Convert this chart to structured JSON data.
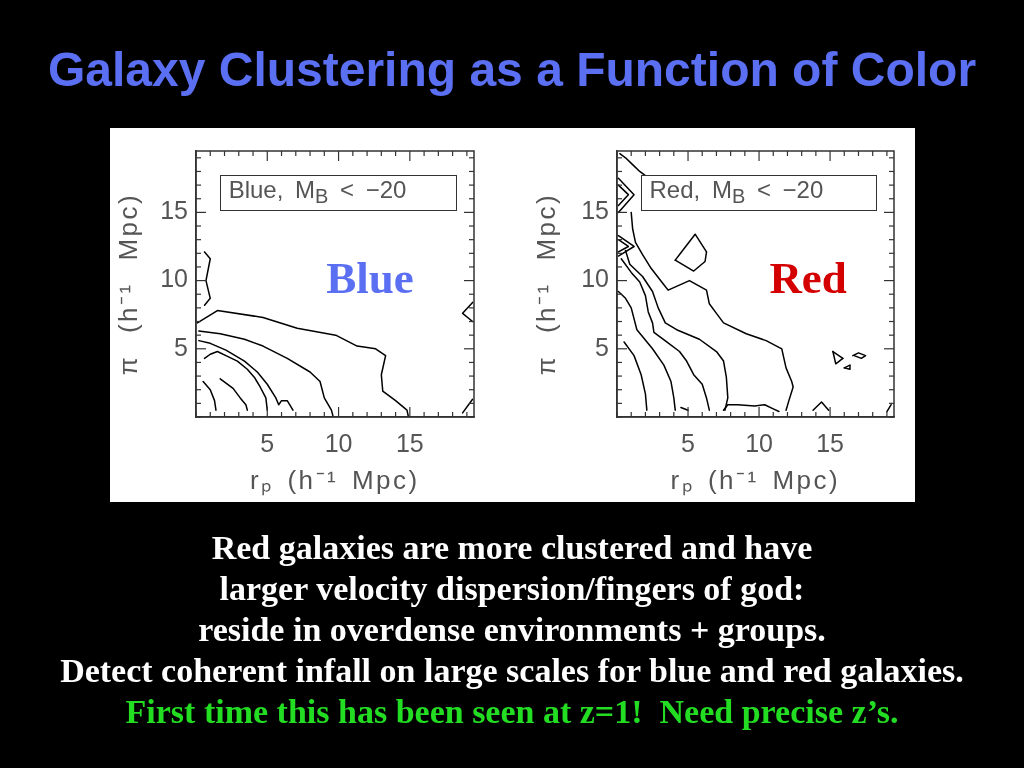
{
  "chart_data": [
    {
      "type": "line",
      "title": "Galaxy Clustering as a Function of Color",
      "xlabel": "rₚ (h⁻¹ Mpc)",
      "ylabel": "π (h⁻¹ Mpc)",
      "annotations": [
        "Blue, M$_{B}$ < −20",
        "Blue"
      ],
      "xlim": [
        0,
        19.5
      ],
      "ylim": [
        0,
        19.5
      ],
      "xticks": [
        {
          "value": 0,
          "label": null
        },
        {
          "value": 1,
          "label": null
        },
        {
          "value": 2,
          "label": null
        },
        {
          "value": 3,
          "label": null
        },
        {
          "value": 4,
          "label": null
        },
        5,
        {
          "value": 6,
          "label": null
        },
        {
          "value": 7,
          "label": null
        },
        {
          "value": 8,
          "label": null
        },
        {
          "value": 9,
          "label": null
        },
        10,
        {
          "value": 11,
          "label": null
        },
        {
          "value": 12,
          "label": null
        },
        {
          "value": 13,
          "label": null
        },
        {
          "value": 14,
          "label": null
        },
        15,
        {
          "value": 16,
          "label": null
        },
        {
          "value": 17,
          "label": null
        },
        {
          "value": 18,
          "label": null
        },
        {
          "value": 19,
          "label": null
        }
      ],
      "yticks": [
        {
          "value": 0,
          "label": null
        },
        {
          "value": 1,
          "label": null
        },
        {
          "value": 2,
          "label": null
        },
        {
          "value": 3,
          "label": null
        },
        {
          "value": 4,
          "label": null
        },
        5,
        {
          "value": 6,
          "label": null
        },
        {
          "value": 7,
          "label": null
        },
        {
          "value": 8,
          "label": null
        },
        {
          "value": 9,
          "label": null
        },
        10,
        {
          "value": 11,
          "label": null
        },
        {
          "value": 12,
          "label": null
        },
        {
          "value": 13,
          "label": null
        },
        {
          "value": 14,
          "label": null
        },
        15,
        {
          "value": 16,
          "label": null
        },
        {
          "value": 17,
          "label": null
        },
        {
          "value": 18,
          "label": null
        },
        {
          "value": 19,
          "label": null
        }
      ],
      "series": [
        {
          "color": "#000000",
          "x": [
            0.1,
            1.5,
            4.7,
            7.1,
            9.8,
            11.3,
            12.6,
            13.3,
            13.0,
            13.1,
            14.0,
            14.8,
            14.9
          ],
          "values": [
            6.9,
            7.8,
            7.3,
            6.5,
            6.0,
            5.2,
            5.0,
            4.5,
            3.1,
            1.9,
            1.2,
            0.5,
            0
          ]
        },
        {
          "color": "#000000",
          "x": [
            0.2,
            1.7,
            3.4,
            4.7,
            6.4,
            8.0,
            8.7,
            9.0,
            9.5,
            9.6
          ],
          "values": [
            6.3,
            6.1,
            5.7,
            5.2,
            4.3,
            3.3,
            2.6,
            1.4,
            0.5,
            0.1
          ]
        },
        {
          "color": "#000000",
          "x": [
            0.2,
            1.0,
            2.1,
            3.4,
            4.3,
            5.0,
            5.6,
            5.8,
            6.0,
            6.4,
            6.8
          ],
          "values": [
            5.6,
            5.4,
            4.9,
            4.1,
            3.3,
            2.4,
            1.4,
            0.9,
            1.2,
            1.2,
            0.5
          ]
        },
        {
          "color": "#000000",
          "x": [
            0.6,
            1.0,
            1.5,
            2.1,
            2.9,
            3.6,
            4.1,
            4.5,
            4.9,
            5.0
          ],
          "values": [
            4.3,
            4.6,
            4.8,
            4.5,
            4.1,
            3.5,
            2.9,
            2.2,
            1.4,
            0.5
          ]
        },
        {
          "color": "#000000",
          "x": [
            1.7,
            2.6,
            3.1,
            3.5,
            3.6
          ],
          "values": [
            2.8,
            2.1,
            1.4,
            0.9,
            0.5
          ]
        },
        {
          "color": "#000000",
          "x": [
            0.5,
            1.0,
            1.3,
            1.4
          ],
          "values": [
            2.6,
            2.0,
            1.2,
            0.5
          ]
        },
        {
          "color": "#000000",
          "x": [
            0.6,
            1.0,
            0.7,
            1.0,
            0.6
          ],
          "values": [
            12.1,
            11.6,
            10.0,
            8.7,
            8.2
          ]
        },
        {
          "color": "#000000",
          "x": [
            19.4,
            18.7,
            19.4
          ],
          "values": [
            8.4,
            7.6,
            7.0
          ]
        },
        {
          "color": "#000000",
          "x": [
            18.7,
            19.4
          ],
          "values": [
            0.3,
            1.3
          ]
        }
      ]
    },
    {
      "type": "line",
      "xlabel": "rₚ (h⁻¹ Mpc)",
      "ylabel": "π (h⁻¹ Mpc)",
      "annotations": [
        "Red, M$_{B}$ < −20",
        "Red",
        "Red galaxies are more clustered and have",
        "larger velocity dispersion/fingers of god:",
        "reside in overdense environments + groups.",
        "Detect coherent infall on large scales for blue and red galaxies.",
        "First time this has been seen at z=1!  Need precise z’s."
      ],
      "xlim": [
        0,
        19.5
      ],
      "ylim": [
        0,
        19.5
      ],
      "xticks": [
        {
          "value": 0,
          "label": null
        },
        {
          "value": 1,
          "label": null
        },
        {
          "value": 2,
          "label": null
        },
        {
          "value": 3,
          "label": null
        },
        {
          "value": 4,
          "label": null
        },
        5,
        {
          "value": 6,
          "label": null
        },
        {
          "value": 7,
          "label": null
        },
        {
          "value": 8,
          "label": null
        },
        {
          "value": 9,
          "label": null
        },
        10,
        {
          "value": 11,
          "label": null
        },
        {
          "value": 12,
          "label": null
        },
        {
          "value": 13,
          "label": null
        },
        {
          "value": 14,
          "label": null
        },
        15,
        {
          "value": 16,
          "label": null
        },
        {
          "value": 17,
          "label": null
        },
        {
          "value": 18,
          "label": null
        },
        {
          "value": 19,
          "label": null
        }
      ],
      "yticks": [
        {
          "value": 0,
          "label": null
        },
        {
          "value": 1,
          "label": null
        },
        {
          "value": 2,
          "label": null
        },
        {
          "value": 3,
          "label": null
        },
        {
          "value": 4,
          "label": null
        },
        5,
        {
          "value": 6,
          "label": null
        },
        {
          "value": 7,
          "label": null
        },
        {
          "value": 8,
          "label": null
        },
        {
          "value": 9,
          "label": null
        },
        10,
        {
          "value": 11,
          "label": null
        },
        {
          "value": 12,
          "label": null
        },
        {
          "value": 13,
          "label": null
        },
        {
          "value": 14,
          "label": null
        },
        15,
        {
          "value": 16,
          "label": null
        },
        {
          "value": 17,
          "label": null
        },
        {
          "value": 18,
          "label": null
        },
        {
          "value": 19,
          "label": null
        }
      ],
      "series": [
        {
          "color": "#000000",
          "x": [
            0.5,
            1.2,
            1.7,
            2.0,
            2.1
          ],
          "values": [
            5.5,
            4.5,
            3.1,
            1.7,
            0.5
          ]
        },
        {
          "color": "#000000",
          "x": [
            0.1,
            0.6,
            1.0,
            1.4,
            2.5,
            3.3,
            3.8,
            4.0,
            4.1
          ],
          "values": [
            9.2,
            8.7,
            8.0,
            6.4,
            5.0,
            3.8,
            2.6,
            1.4,
            0.5
          ]
        },
        {
          "color": "#000000",
          "x": [
            0.3,
            1.0,
            1.6,
            2.0,
            2.2,
            2.5,
            2.6,
            3.5,
            4.4,
            4.9,
            5.4,
            6.0,
            6.3,
            6.5
          ],
          "values": [
            11.6,
            10.6,
            9.9,
            8.9,
            7.7,
            6.9,
            6.2,
            5.5,
            4.8,
            4.1,
            3.1,
            2.4,
            1.4,
            0.5
          ]
        },
        {
          "color": "#000000",
          "x": [
            0.6,
            0.9,
            1.8,
            2.5,
            2.9,
            3.4,
            4.2,
            5.8,
            7.0,
            7.5,
            7.7,
            7.8,
            7.6
          ],
          "values": [
            12.2,
            11.2,
            10.3,
            9.2,
            8.0,
            6.9,
            6.4,
            5.7,
            4.8,
            4.1,
            2.9,
            1.4,
            0.5
          ]
        },
        {
          "color": "#000000",
          "x": [
            7.5,
            7.8,
            8.5,
            9.7,
            10.4,
            11.0,
            11.4
          ],
          "values": [
            0.5,
            0.9,
            0.9,
            0.8,
            0.9,
            0.6,
            0.4
          ]
        },
        {
          "color": "#000000",
          "x": [
            0.2,
            0.6,
            1.1,
            1.6,
            2.0
          ],
          "values": [
            19.3,
            19.0,
            18.5,
            18.0,
            17.7
          ]
        },
        {
          "color": "#000000",
          "x": [
            1.0,
            1.1,
            1.3,
            1.8,
            2.4,
            3.3,
            3.6,
            5.1,
            6.3,
            6.5,
            7.0,
            7.5,
            9.1,
            10.5,
            11.6,
            11.9,
            12.3,
            12.4,
            12.1,
            11.9
          ],
          "values": [
            15.0,
            13.8,
            12.8,
            11.9,
            10.9,
            9.7,
            9.3,
            10.0,
            9.3,
            8.3,
            7.6,
            6.9,
            6.1,
            5.6,
            5.0,
            3.6,
            2.6,
            2.2,
            1.2,
            0.5
          ]
        },
        {
          "color": "#000000",
          "x": [
            4.1,
            5.5,
            6.3
          ],
          "values": [
            11.5,
            13.4,
            12.1
          ]
        },
        {
          "color": "#000000",
          "x": [
            4.1,
            5.4,
            6.2,
            6.3
          ],
          "values": [
            11.5,
            10.7,
            11.4,
            12.1
          ]
        },
        {
          "color": "#000000",
          "x": [
            15.2,
            15.9
          ],
          "values": [
            4.8,
            4.3
          ]
        },
        {
          "color": "#000000",
          "x": [
            15.2,
            15.4,
            15.9
          ],
          "values": [
            4.8,
            3.9,
            4.3
          ]
        },
        {
          "color": "#000000",
          "x": [
            16.6,
            17.0,
            17.5,
            17.2,
            16.7
          ],
          "values": [
            4.5,
            4.7,
            4.5,
            4.3,
            4.5
          ]
        },
        {
          "color": "#000000",
          "x": [
            16.0,
            16.4
          ],
          "values": [
            3.6,
            3.8
          ]
        },
        {
          "color": "#000000",
          "x": [
            16.0,
            16.4,
            16.4
          ],
          "values": [
            3.6,
            3.5,
            3.8
          ]
        },
        {
          "color": "#000000",
          "x": [
            13.8,
            14.4,
            14.9
          ],
          "values": [
            0.5,
            1.1,
            0.5
          ]
        },
        {
          "color": "#000000",
          "x": [
            19.0,
            19.3
          ],
          "values": [
            0.4,
            0.9
          ]
        },
        {
          "color": "#000000",
          "x": [
            4.5,
            5.0
          ],
          "values": [
            0.7,
            0.5
          ]
        },
        {
          "color": "#000000",
          "x": [
            0.1,
            1.2,
            0.1
          ],
          "values": [
            17.5,
            16.3,
            15.0
          ]
        },
        {
          "color": "#000000",
          "x": [
            0.1,
            0.8,
            0.1
          ],
          "values": [
            17.0,
            16.3,
            15.5
          ]
        },
        {
          "color": "#000000",
          "x": [
            0.1,
            1.2,
            0.1
          ],
          "values": [
            13.3,
            12.5,
            11.8
          ]
        },
        {
          "color": "#000000",
          "x": [
            0.1,
            0.8,
            0.1
          ],
          "values": [
            13.0,
            12.5,
            12.1
          ]
        }
      ]
    }
  ]
}
